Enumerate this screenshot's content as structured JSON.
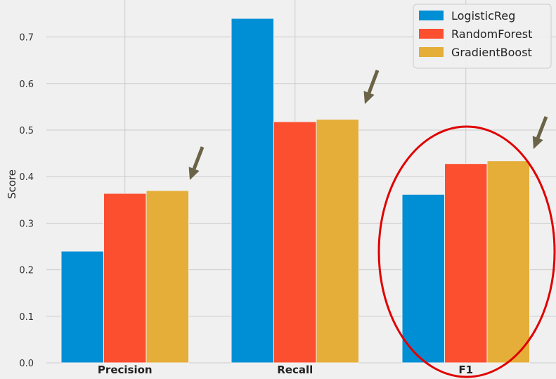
{
  "chart_data": {
    "type": "bar",
    "title": "",
    "xlabel": "",
    "ylabel": "Score",
    "categories": [
      "Precision",
      "Recall",
      "F1"
    ],
    "series": [
      {
        "name": "LogisticReg",
        "color": "#008fd5",
        "values": [
          0.24,
          0.74,
          0.362
        ]
      },
      {
        "name": "RandomForest",
        "color": "#fc4f30",
        "values": [
          0.364,
          0.518,
          0.428
        ]
      },
      {
        "name": "GradientBoost",
        "color": "#e5ae38",
        "values": [
          0.37,
          0.523,
          0.434
        ]
      }
    ],
    "yticks": [
      "0.0",
      "0.1",
      "0.2",
      "0.3",
      "0.4",
      "0.5",
      "0.6",
      "0.7"
    ],
    "ylim": [
      0,
      0.78
    ],
    "grid": true,
    "legend_position": "top-right",
    "annotations": {
      "arrows": "pointing to the GradientBoost bar of each metric",
      "arrow_color": "#6b6347",
      "highlight": "red ellipse around the F1 group",
      "highlight_color": "#e00000"
    },
    "background": "#f0f0f0"
  }
}
